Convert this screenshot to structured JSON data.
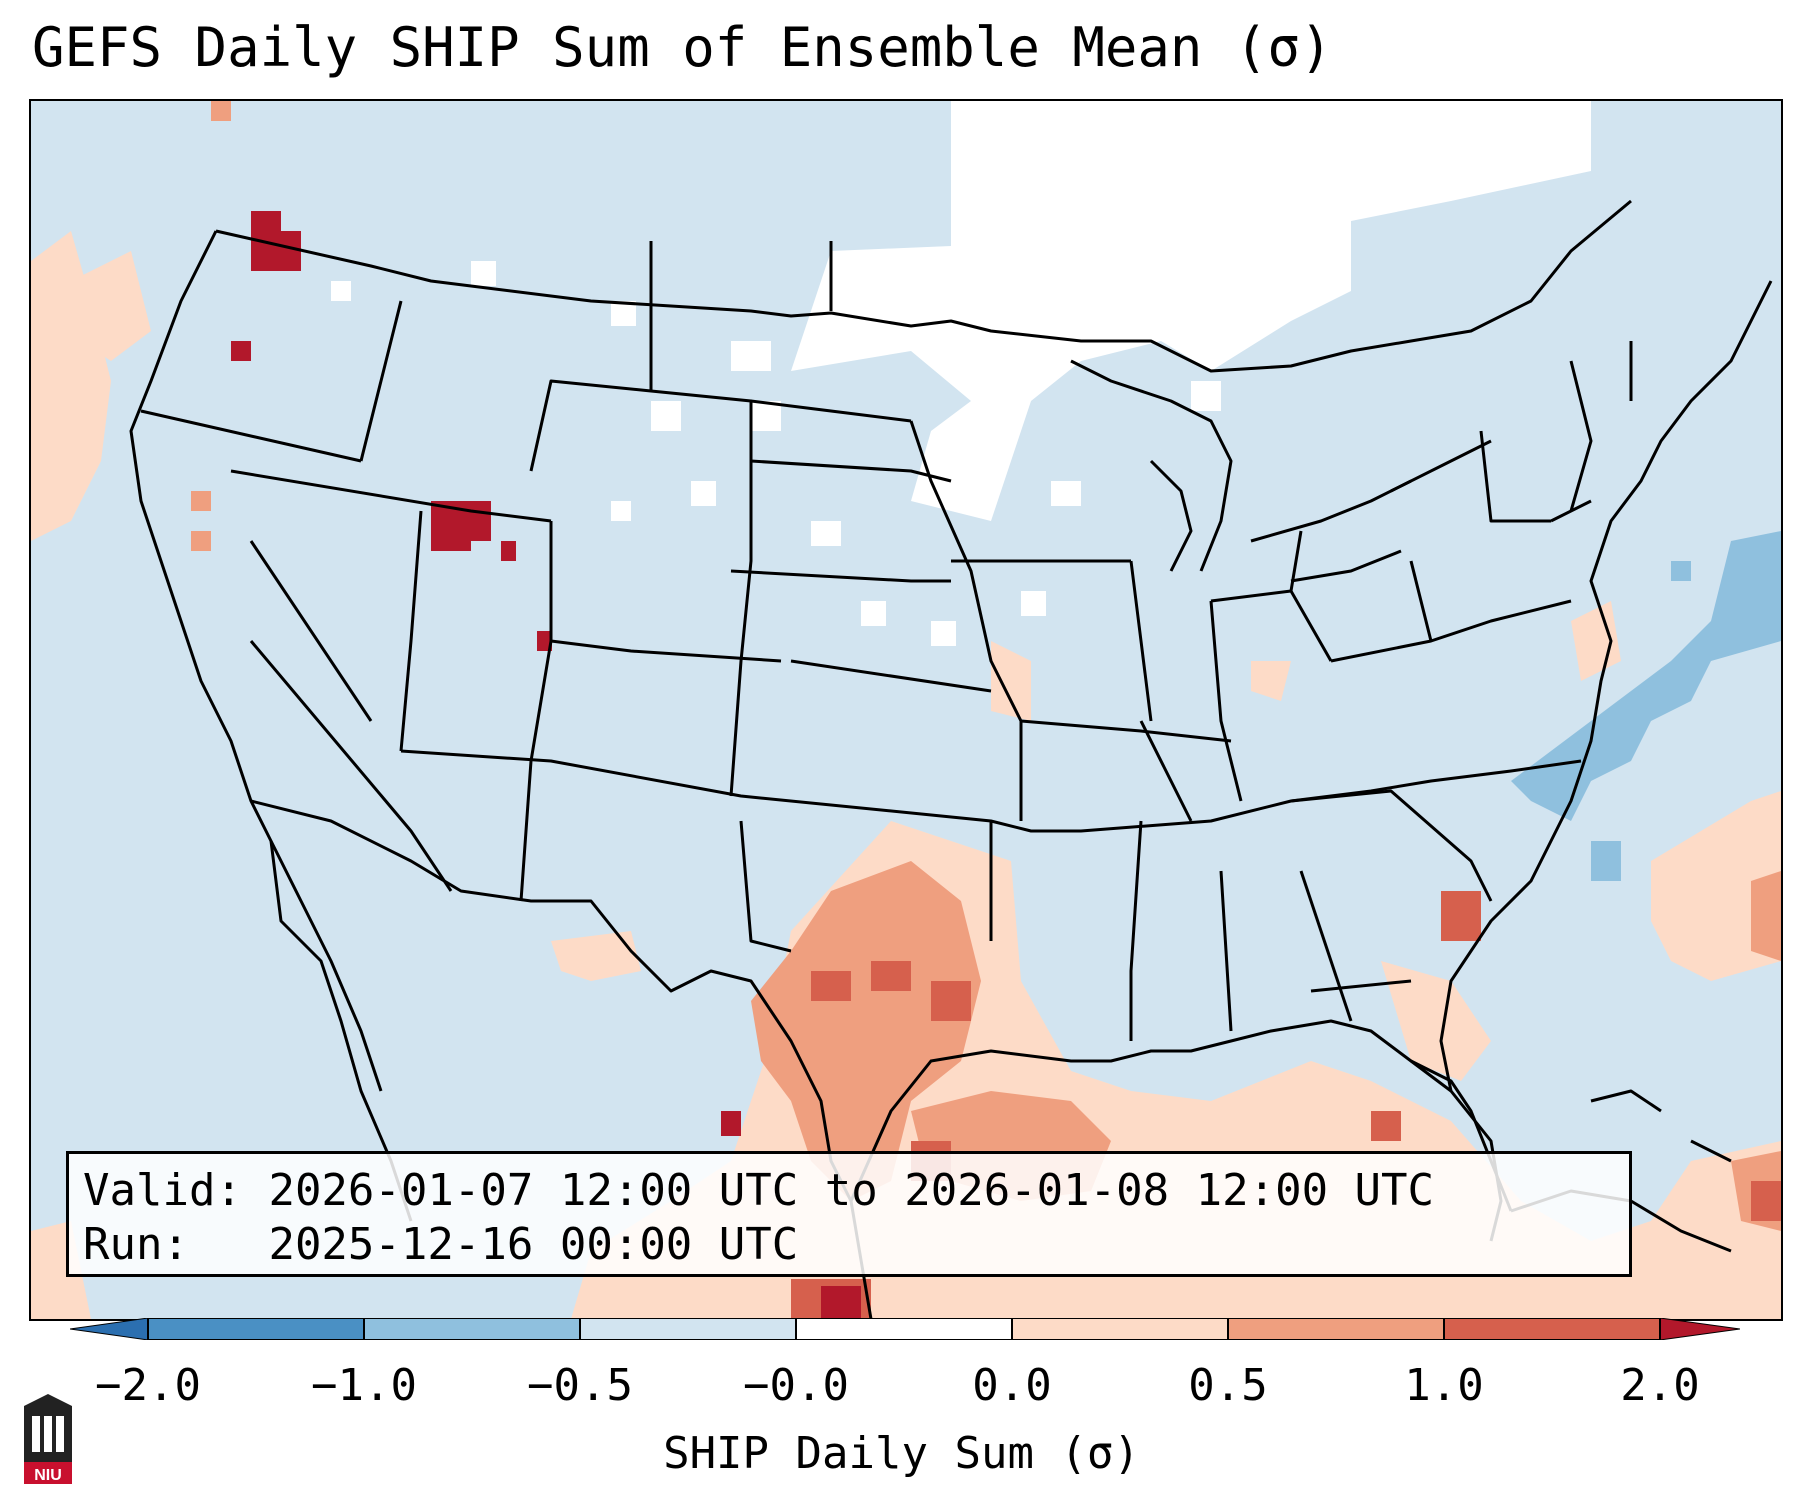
{
  "title": "GEFS Daily SHIP Sum of Ensemble Mean (σ)",
  "info": {
    "valid_label": "Valid:",
    "valid_value": "2026-01-07 12:00 UTC to 2026-01-08 12:00 UTC",
    "run_label": "Run:",
    "run_value": "2025-12-16 00:00 UTC"
  },
  "colorbar": {
    "label": "SHIP Daily Sum (σ)",
    "ticks": [
      "−2.0",
      "−1.0",
      "−0.5",
      "−0.0",
      "0.0",
      "0.5",
      "1.0",
      "2.0"
    ],
    "colors": {
      "under": "#2b6fb0",
      "lt_neg1": "#4a90c4",
      "neg1_neg05": "#8fc0de",
      "neg05_0": "#d2e4f0",
      "zero": "#ffffff",
      "pos0_05": "#fddbc7",
      "pos05_1": "#ef9f7f",
      "pos1_2": "#d6604d",
      "over": "#b2182b"
    }
  },
  "map": {
    "background_color": "#d2e4f0",
    "neutral_color": "#ffffff",
    "weak_pos_color": "#fddbc7",
    "mod_pos_color": "#ef9f7f",
    "strong_pos_color": "#d6604d",
    "extreme_pos_color": "#b2182b",
    "neg_color": "#8fc0de",
    "border_color": "#000000"
  },
  "logo": {
    "text": "NIU",
    "color": "#c8102e"
  }
}
